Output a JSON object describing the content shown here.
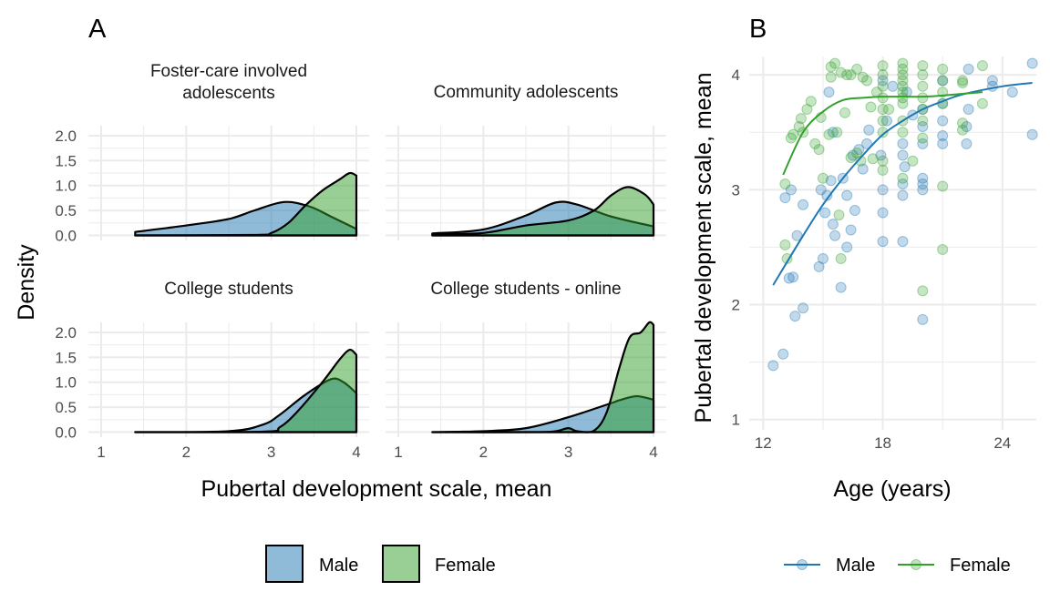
{
  "colors": {
    "male": "#1f78b4",
    "female": "#33a02c",
    "grid": "#ebebeb"
  },
  "chart_data": [
    {
      "type": "area",
      "tag": "A",
      "xlabel": "Pubertal development scale, mean",
      "ylabel": "Density",
      "xlim": [
        0.85,
        4.15
      ],
      "ylim": [
        -0.1,
        2.2
      ],
      "xticks": [
        "1",
        "2",
        "3",
        "4"
      ],
      "yticks": [
        "0.0",
        "0.5",
        "1.0",
        "1.5",
        "2.0"
      ],
      "grid": true,
      "legend_position": "bottom",
      "legend": [
        "Male",
        "Female"
      ],
      "facets": [
        {
          "title": "Foster-care involved\nadolescents",
          "male": [
            [
              1.4,
              0.07
            ],
            [
              2.0,
              0.2
            ],
            [
              2.5,
              0.33
            ],
            [
              2.8,
              0.5
            ],
            [
              3.15,
              0.67
            ],
            [
              3.45,
              0.58
            ],
            [
              3.7,
              0.38
            ],
            [
              4.0,
              0.13
            ]
          ],
          "female": [
            [
              1.4,
              0
            ],
            [
              2.8,
              0.01
            ],
            [
              3.0,
              0.05
            ],
            [
              3.2,
              0.25
            ],
            [
              3.4,
              0.6
            ],
            [
              3.6,
              0.9
            ],
            [
              3.8,
              1.12
            ],
            [
              3.92,
              1.25
            ],
            [
              4.0,
              1.2
            ]
          ]
        },
        {
          "title": "Community adolescents",
          "male": [
            [
              1.4,
              0.04
            ],
            [
              2.0,
              0.12
            ],
            [
              2.5,
              0.4
            ],
            [
              2.85,
              0.66
            ],
            [
              3.1,
              0.62
            ],
            [
              3.5,
              0.38
            ],
            [
              4.0,
              0.18
            ]
          ],
          "female": [
            [
              1.4,
              0.02
            ],
            [
              2.0,
              0.05
            ],
            [
              2.5,
              0.2
            ],
            [
              3.0,
              0.3
            ],
            [
              3.3,
              0.5
            ],
            [
              3.5,
              0.8
            ],
            [
              3.7,
              0.97
            ],
            [
              3.9,
              0.82
            ],
            [
              4.0,
              0.62
            ]
          ]
        },
        {
          "title": "College students",
          "male": [
            [
              1.4,
              0
            ],
            [
              2.5,
              0.02
            ],
            [
              2.9,
              0.15
            ],
            [
              3.1,
              0.35
            ],
            [
              3.4,
              0.75
            ],
            [
              3.7,
              1.06
            ],
            [
              3.85,
              1.0
            ],
            [
              4.0,
              0.78
            ]
          ],
          "female": [
            [
              1.4,
              0
            ],
            [
              2.9,
              0.01
            ],
            [
              3.1,
              0.1
            ],
            [
              3.3,
              0.4
            ],
            [
              3.6,
              1.0
            ],
            [
              3.8,
              1.45
            ],
            [
              3.92,
              1.65
            ],
            [
              4.0,
              1.55
            ]
          ]
        },
        {
          "title": "College students - online",
          "male": [
            [
              1.4,
              0
            ],
            [
              2.0,
              0.02
            ],
            [
              2.5,
              0.08
            ],
            [
              3.0,
              0.3
            ],
            [
              3.5,
              0.58
            ],
            [
              3.6,
              0.64
            ],
            [
              3.8,
              0.72
            ],
            [
              4.0,
              0.65
            ]
          ],
          "female": [
            [
              1.4,
              0
            ],
            [
              2.6,
              0
            ],
            [
              2.85,
              0.02
            ],
            [
              3.0,
              0.08
            ],
            [
              3.1,
              0.02
            ],
            [
              3.3,
              0.03
            ],
            [
              3.45,
              0.4
            ],
            [
              3.6,
              1.3
            ],
            [
              3.72,
              1.9
            ],
            [
              3.85,
              2.0
            ],
            [
              3.95,
              2.2
            ],
            [
              4.0,
              2.15
            ]
          ]
        }
      ]
    },
    {
      "type": "scatter",
      "tag": "B",
      "xlabel": "Age (years)",
      "ylabel": "Pubertal development scale, mean",
      "xlim": [
        11.3,
        25.7
      ],
      "ylim": [
        0.91,
        4.16
      ],
      "xticks": [
        "12",
        "18",
        "24"
      ],
      "yticks": [
        "1",
        "2",
        "3",
        "4"
      ],
      "grid": true,
      "legend_position": "bottom",
      "series": [
        {
          "name": "Male",
          "points": [
            [
              12.5,
              1.47
            ],
            [
              13,
              1.57
            ],
            [
              13.3,
              2.23
            ],
            [
              13.5,
              2.24
            ],
            [
              13.6,
              1.9
            ],
            [
              14,
              1.97
            ],
            [
              13.7,
              2.6
            ],
            [
              13.4,
              3.0
            ],
            [
              13.1,
              2.93
            ],
            [
              14,
              2.87
            ],
            [
              14.8,
              2.33
            ],
            [
              15,
              2.4
            ],
            [
              14.9,
              3.0
            ],
            [
              15.2,
              2.95
            ],
            [
              15.5,
              2.7
            ],
            [
              15.1,
              2.8
            ],
            [
              15.6,
              2.6
            ],
            [
              15.9,
              2.15
            ],
            [
              16.2,
              2.5
            ],
            [
              16.4,
              2.65
            ],
            [
              15.4,
              3.08
            ],
            [
              16.2,
              2.95
            ],
            [
              16.0,
              3.1
            ],
            [
              16.6,
              2.82
            ],
            [
              17.0,
              3.18
            ],
            [
              16.5,
              3.3
            ],
            [
              16.8,
              3.35
            ],
            [
              17.2,
              3.4
            ],
            [
              17.3,
              3.52
            ],
            [
              15.5,
              3.5
            ],
            [
              15.3,
              3.85
            ],
            [
              18,
              2.8
            ],
            [
              18,
              2.55
            ],
            [
              18,
              3.0
            ],
            [
              17.9,
              3.3
            ],
            [
              18.2,
              3.6
            ],
            [
              18,
              3.95
            ],
            [
              19,
              2.55
            ],
            [
              19,
              2.95
            ],
            [
              19,
              3.05
            ],
            [
              19.1,
              3.2
            ],
            [
              19,
              3.3
            ],
            [
              19,
              3.4
            ],
            [
              19.2,
              3.85
            ],
            [
              20,
              1.87
            ],
            [
              20,
              3.0
            ],
            [
              20,
              3.05
            ],
            [
              20,
              3.1
            ],
            [
              20,
              3.4
            ],
            [
              20,
              3.55
            ],
            [
              20,
              3.7
            ],
            [
              21,
              3.4
            ],
            [
              21,
              3.47
            ],
            [
              21,
              3.6
            ],
            [
              21,
              3.75
            ],
            [
              21,
              3.95
            ],
            [
              22.2,
              3.4
            ],
            [
              22.2,
              3.55
            ],
            [
              22.3,
              3.7
            ],
            [
              22.3,
              4.05
            ],
            [
              23.5,
              3.95
            ],
            [
              23.5,
              3.9
            ],
            [
              24.5,
              3.85
            ],
            [
              25.5,
              4.1
            ],
            [
              25.5,
              3.48
            ],
            [
              18.5,
              3.9
            ],
            [
              19.5,
              3.65
            ]
          ],
          "smooth": [
            [
              12.5,
              2.17
            ],
            [
              14,
              2.6
            ],
            [
              15,
              2.87
            ],
            [
              16,
              3.1
            ],
            [
              17,
              3.3
            ],
            [
              18,
              3.48
            ],
            [
              19,
              3.6
            ],
            [
              20,
              3.7
            ],
            [
              21,
              3.77
            ],
            [
              22,
              3.83
            ],
            [
              24,
              3.9
            ],
            [
              25.5,
              3.93
            ]
          ]
        },
        {
          "name": "Female",
          "points": [
            [
              13.1,
              3.05
            ],
            [
              13.1,
              2.52
            ],
            [
              13.2,
              2.4
            ],
            [
              13.4,
              3.45
            ],
            [
              13.5,
              3.48
            ],
            [
              13.8,
              3.55
            ],
            [
              13.9,
              3.62
            ],
            [
              14.2,
              3.7
            ],
            [
              14.4,
              3.77
            ],
            [
              14,
              3.5
            ],
            [
              14.6,
              3.4
            ],
            [
              14.8,
              3.35
            ],
            [
              14.9,
              3.63
            ],
            [
              15.0,
              3.1
            ],
            [
              15.3,
              3.48
            ],
            [
              15.7,
              3.5
            ],
            [
              15.4,
              3.98
            ],
            [
              15.4,
              4.07
            ],
            [
              15.6,
              4.1
            ],
            [
              15.9,
              4.02
            ],
            [
              16.2,
              4.0
            ],
            [
              16.4,
              4.0
            ],
            [
              16.7,
              4.05
            ],
            [
              17.0,
              3.98
            ],
            [
              17.2,
              3.95
            ],
            [
              16.1,
              3.67
            ],
            [
              16.4,
              3.28
            ],
            [
              16.7,
              3.32
            ],
            [
              16.9,
              3.25
            ],
            [
              15.8,
              2.78
            ],
            [
              15.9,
              2.4
            ],
            [
              17.5,
              3.27
            ],
            [
              17.7,
              3.85
            ],
            [
              17.4,
              3.72
            ],
            [
              18,
              3.5
            ],
            [
              18,
              3.6
            ],
            [
              18,
              3.7
            ],
            [
              18,
              3.8
            ],
            [
              18,
              3.9
            ],
            [
              18,
              4.0
            ],
            [
              18,
              4.08
            ],
            [
              18,
              3.17
            ],
            [
              18,
              3.25
            ],
            [
              18.3,
              3.7
            ],
            [
              19,
              3.1
            ],
            [
              19,
              3.5
            ],
            [
              19,
              3.6
            ],
            [
              19,
              3.75
            ],
            [
              19,
              3.8
            ],
            [
              19,
              3.85
            ],
            [
              19,
              3.9
            ],
            [
              19,
              3.95
            ],
            [
              19,
              4.0
            ],
            [
              19,
              4.05
            ],
            [
              19,
              4.1
            ],
            [
              19.5,
              3.25
            ],
            [
              20,
              2.12
            ],
            [
              20,
              3.45
            ],
            [
              20,
              3.6
            ],
            [
              20,
              3.7
            ],
            [
              20,
              3.8
            ],
            [
              20,
              3.9
            ],
            [
              20,
              4.0
            ],
            [
              20,
              4.08
            ],
            [
              21,
              2.48
            ],
            [
              21,
              3.03
            ],
            [
              21,
              3.75
            ],
            [
              21,
              3.85
            ],
            [
              21,
              3.95
            ],
            [
              21,
              4.05
            ],
            [
              22,
              3.52
            ],
            [
              22,
              3.58
            ],
            [
              22,
              3.95
            ],
            [
              22,
              3.93
            ],
            [
              23.0,
              4.08
            ],
            [
              23.0,
              3.75
            ]
          ],
          "smooth": [
            [
              13,
              3.13
            ],
            [
              14,
              3.5
            ],
            [
              15,
              3.68
            ],
            [
              16,
              3.78
            ],
            [
              17,
              3.8
            ],
            [
              18,
              3.81
            ],
            [
              20,
              3.81
            ],
            [
              21,
              3.82
            ],
            [
              23,
              3.85
            ]
          ]
        }
      ]
    }
  ]
}
